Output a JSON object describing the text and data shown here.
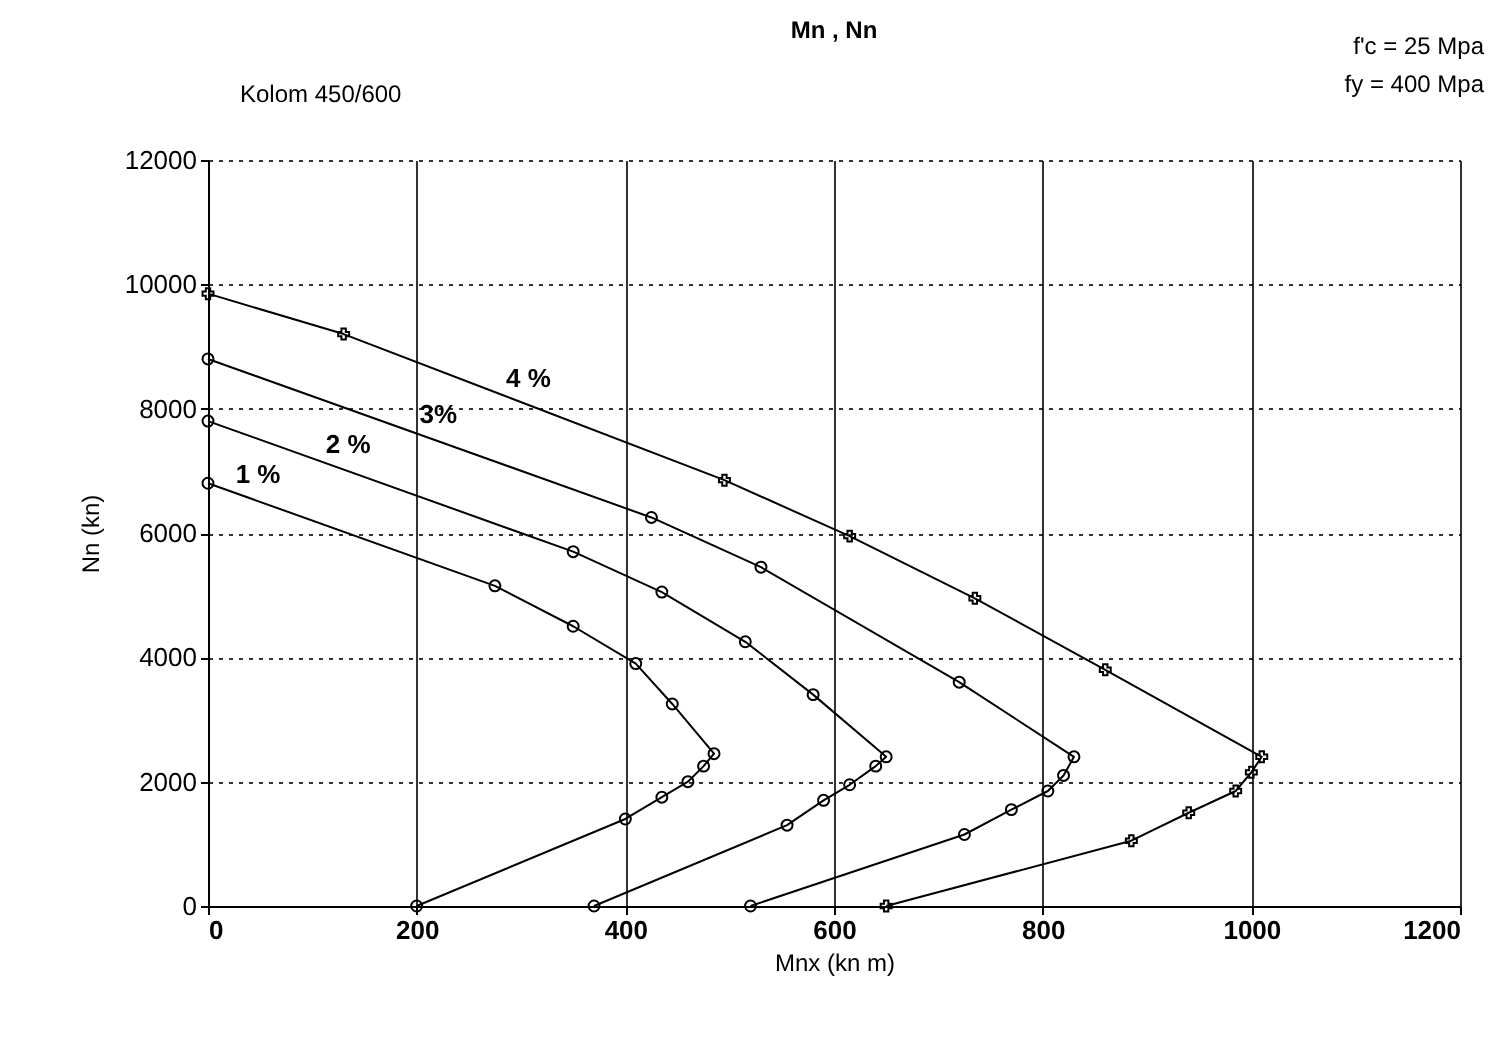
{
  "chart_data": {
    "type": "line",
    "title": "Mn , Nn",
    "xlabel": "Mnx  (kn m)",
    "ylabel": "Nn (kn)",
    "annotations": [
      "Kolom 450/600",
      "f'c = 25 Mpa",
      "fy = 400 Mpa"
    ],
    "xlim": [
      0,
      1200
    ],
    "xticks": [
      0,
      200,
      400,
      600,
      800,
      1000,
      1200
    ],
    "ylim": [
      0,
      12000
    ],
    "yticks": [
      0,
      2000,
      4000,
      6000,
      8000,
      10000,
      12000
    ],
    "grid": true,
    "series": [
      {
        "name": "1 %",
        "color": "#000000",
        "marker": "circle",
        "x": [
          0,
          275,
          350,
          410,
          445,
          485,
          475,
          460,
          435,
          400,
          200
        ],
        "values": [
          6800,
          5150,
          4500,
          3900,
          3250,
          2450,
          2250,
          2000,
          1750,
          1400,
          0
        ]
      },
      {
        "name": "2 %",
        "color": "#000000",
        "marker": "circle",
        "x": [
          0,
          350,
          435,
          515,
          580,
          650,
          640,
          615,
          590,
          555,
          370
        ],
        "values": [
          7800,
          5700,
          5050,
          4250,
          3400,
          2400,
          2250,
          1950,
          1700,
          1300,
          0
        ]
      },
      {
        "name": "3%",
        "color": "#000000",
        "marker": "circle",
        "x": [
          0,
          425,
          530,
          720,
          830,
          820,
          805,
          770,
          725,
          520
        ],
        "values": [
          8800,
          6250,
          5450,
          3600,
          2400,
          2100,
          1850,
          1550,
          1150,
          0
        ]
      },
      {
        "name": "4 %",
        "color": "#000000",
        "marker": "cross",
        "x": [
          0,
          130,
          495,
          615,
          735,
          860,
          1010,
          1000,
          985,
          940,
          885,
          650
        ],
        "values": [
          9850,
          9200,
          6850,
          5950,
          4950,
          3800,
          2400,
          2150,
          1850,
          1500,
          1050,
          0
        ]
      }
    ]
  }
}
